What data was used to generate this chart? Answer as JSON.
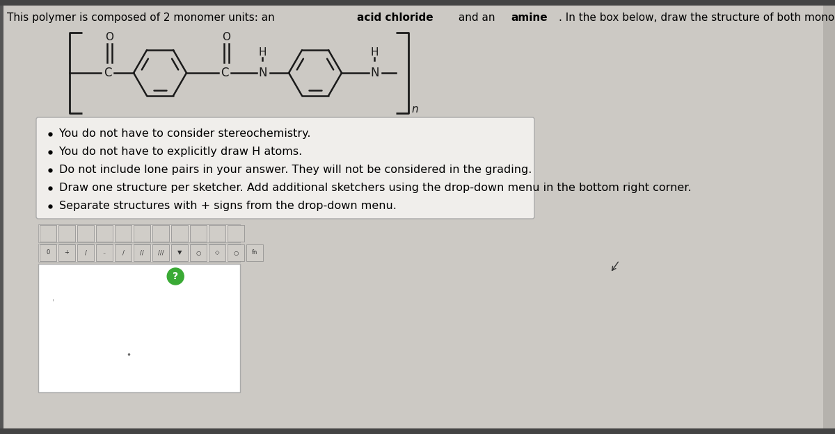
{
  "bg_color": "#ccc9c4",
  "title_parts": [
    [
      "This polymer is composed of 2 monomer units: an ",
      false
    ],
    [
      "acid chloride",
      true
    ],
    [
      " and an ",
      false
    ],
    [
      "amine",
      true
    ],
    [
      ". In the box below, draw the structure of both monomers.",
      false
    ]
  ],
  "title_fontsize": 11.0,
  "bullet_points": [
    "You do not have to consider stereochemistry.",
    "You do not have to explicitly draw H atoms.",
    "Do not include lone pairs in your answer. They will not be considered in the grading.",
    "Draw one structure per sketcher. Add additional sketchers using the drop-down menu in the bottom right corner.",
    "Separate structures with + signs from the drop-down menu."
  ],
  "bullet_fontsize": 11.5,
  "box_color": "#f0eeeb",
  "box_border": "#aaaaaa",
  "sketcher_box_color": "#ffffff",
  "sketcher_box_border": "#aaaaaa",
  "toolbar_color": "#dedad5",
  "struct_color": "#1a1a1a"
}
